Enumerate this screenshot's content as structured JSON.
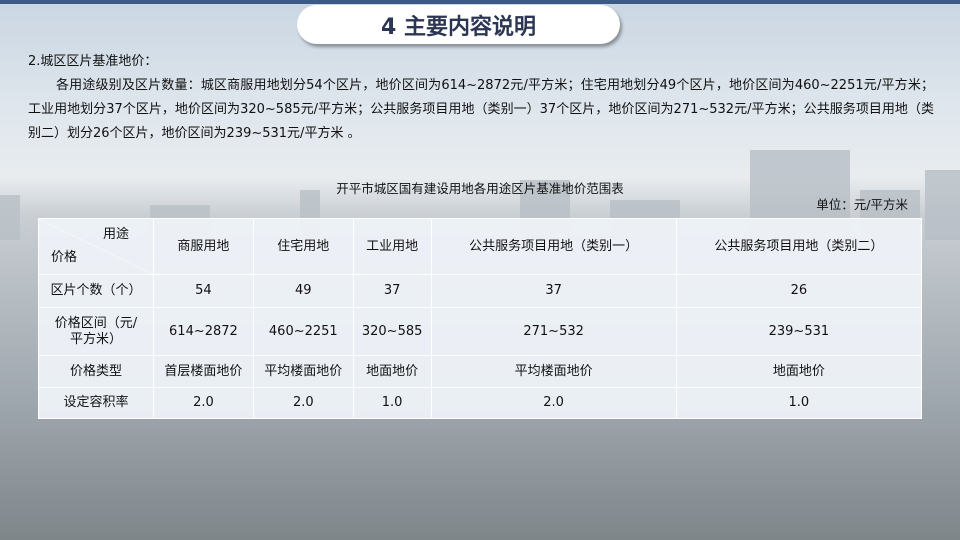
{
  "title": "4 主要内容说明",
  "section": "2.城区区片基准地价：",
  "paragraph": "各用途级别及区片数量：城区商服用地划分54个区片，地价区间为614~2872元/平方米；住宅用地划分49个区片，地价区间为460~2251元/平方米；工业用地划分37个区片，地价区间为320~585元/平方米；公共服务项目用地（类别一）37个区片，地价区间为271~532元/平方米；公共服务项目用地（类别二）划分26个区片，地价区间为239~531元/平方米 。",
  "table": {
    "caption": "开平市城区国有建设用地各用途区片基准地价范围表",
    "unit": "单位：元/平方米",
    "corner_top": "用途",
    "corner_bottom": "价格",
    "columns": [
      "商服用地",
      "住宅用地",
      "工业用地",
      "公共服务项目用地（类别一）",
      "公共服务项目用地（类别二）"
    ],
    "rows": [
      {
        "label": "区片个数（个）",
        "values": [
          "54",
          "49",
          "37",
          "37",
          "26"
        ]
      },
      {
        "label": "价格区间（元/平方米）",
        "values": [
          "614~2872",
          "460~2251",
          "320~585",
          "271~532",
          "239~531"
        ]
      },
      {
        "label": "价格类型",
        "values": [
          "首层楼面地价",
          "平均楼面地价",
          "地面地价",
          "平均楼面地价",
          "地面地价"
        ]
      },
      {
        "label": "设定容积率",
        "values": [
          "2.0",
          "2.0",
          "1.0",
          "2.0",
          "1.0"
        ]
      }
    ]
  }
}
